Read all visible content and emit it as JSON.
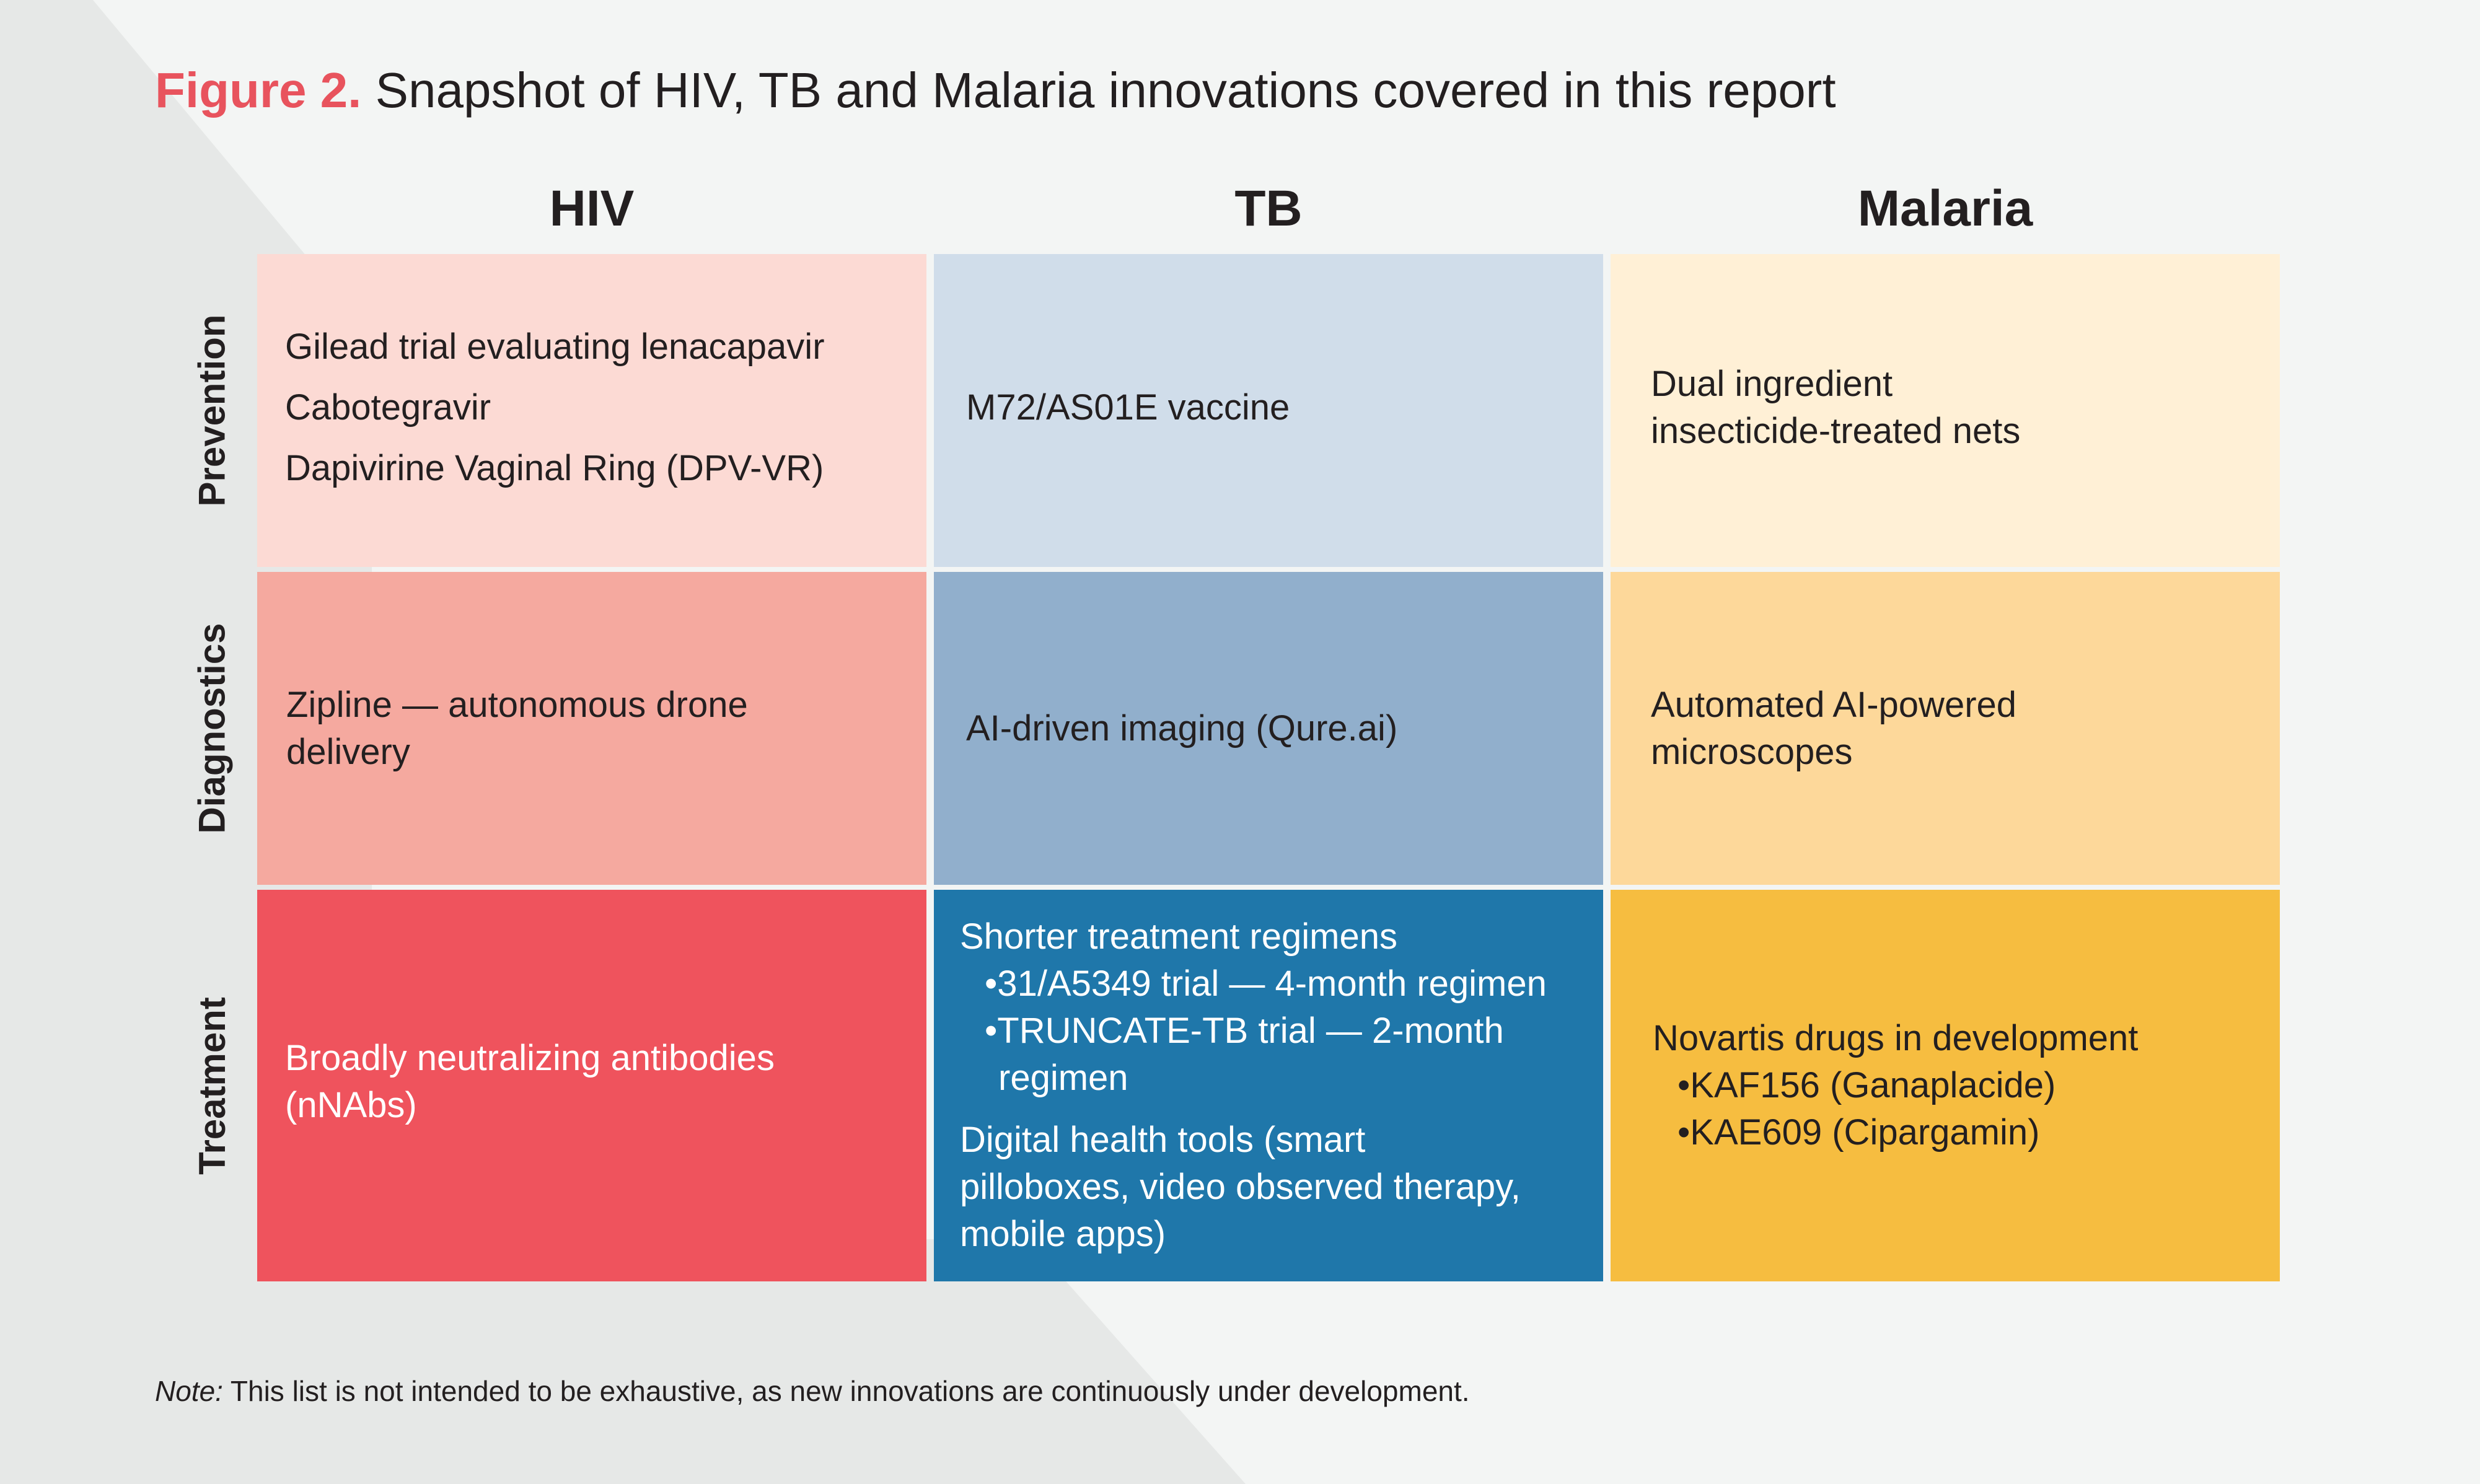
{
  "title": {
    "label": "Figure 2.",
    "text": "Snapshot of HIV, TB and Malaria innovations covered in this report"
  },
  "columns": [
    "HIV",
    "TB",
    "Malaria"
  ],
  "rows": [
    "Prevention",
    "Diagnostics",
    "Treatment"
  ],
  "cells": {
    "hiv_prevention": [
      "Gilead trial evaluating lenacapavir",
      "Cabotegravir",
      "Dapivirine Vaginal Ring (DPV-VR)"
    ],
    "tb_prevention": [
      "M72/AS01E vaccine"
    ],
    "malaria_prevention": [
      "Dual ingredient",
      "insecticide-treated nets"
    ],
    "hiv_diagnostics": [
      "Zipline — autonomous drone",
      "delivery"
    ],
    "tb_diagnostics": [
      "AI-driven imaging (Qure.ai)"
    ],
    "malaria_diagnostics": [
      "Automated AI-powered",
      "microscopes"
    ],
    "hiv_treatment": [
      "Broadly neutralizing antibodies",
      "(nNAbs)"
    ],
    "tb_treatment": {
      "heading": "Shorter treatment regimens",
      "bullets": [
        "•31/A5349 trial — 4-month regimen",
        "•TRUNCATE-TB trial — 2-month regimen"
      ],
      "digital": [
        "Digital health tools (smart",
        "pilloboxes, video observed therapy,",
        "mobile apps)"
      ]
    },
    "malaria_treatment": {
      "heading": "Novartis drugs in development",
      "bullets": [
        "•KAF156 (Ganaplacide)",
        "•KAE609 (Cipargamin)"
      ]
    }
  },
  "colors": {
    "background": "#f3f5f4",
    "background_shape": "#e6e8e7",
    "accent": "#e8535d",
    "hiv": [
      "#fcdad4",
      "#f5a99f",
      "#ef535d"
    ],
    "tb": [
      "#d0ddea",
      "#91afcc",
      "#1f77aa"
    ],
    "malaria": [
      "#fff0d6",
      "#fdd89a",
      "#f6bd40"
    ]
  },
  "note": {
    "label": "Note:",
    "text": " This list is not intended to be exhaustive, as new innovations are continuously under development."
  }
}
